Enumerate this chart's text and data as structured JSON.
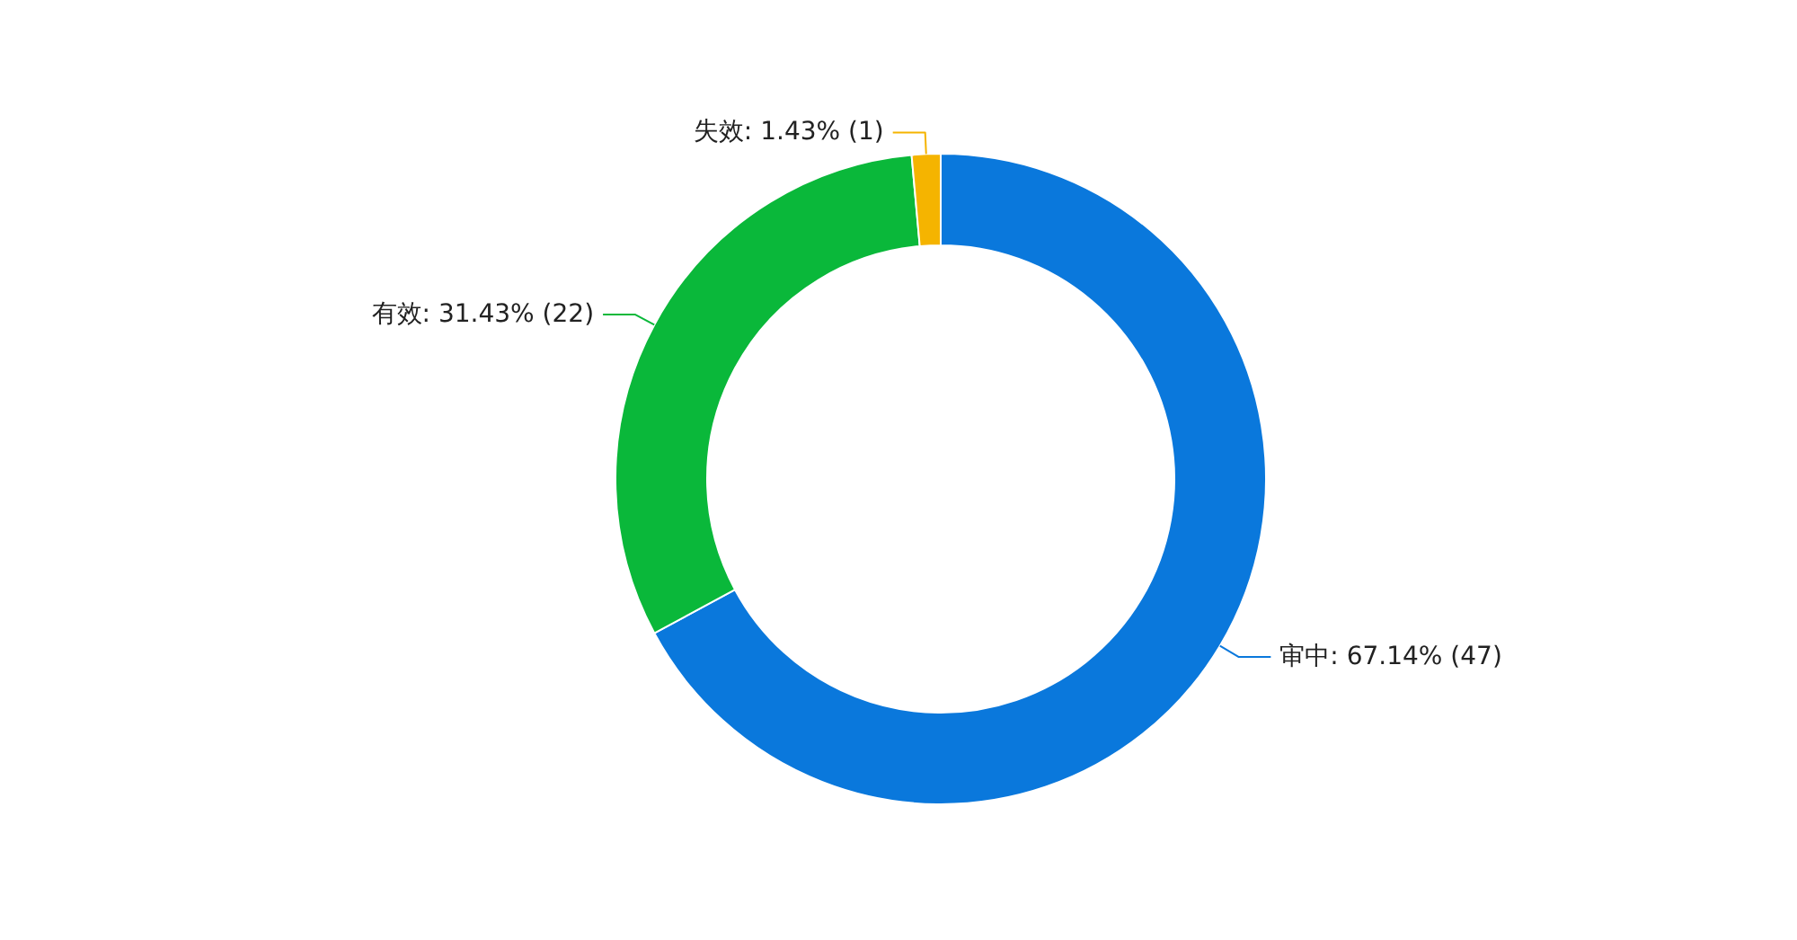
{
  "chart_data": {
    "type": "donut",
    "categories": [
      "审中",
      "有效",
      "失效"
    ],
    "values": [
      47,
      22,
      1
    ],
    "value_labels": [
      "67.14% (47)",
      "31.43% (22)",
      "1.43% (1)"
    ],
    "colors": [
      "#0a78dc",
      "#0ab83a",
      "#f5b400"
    ]
  }
}
